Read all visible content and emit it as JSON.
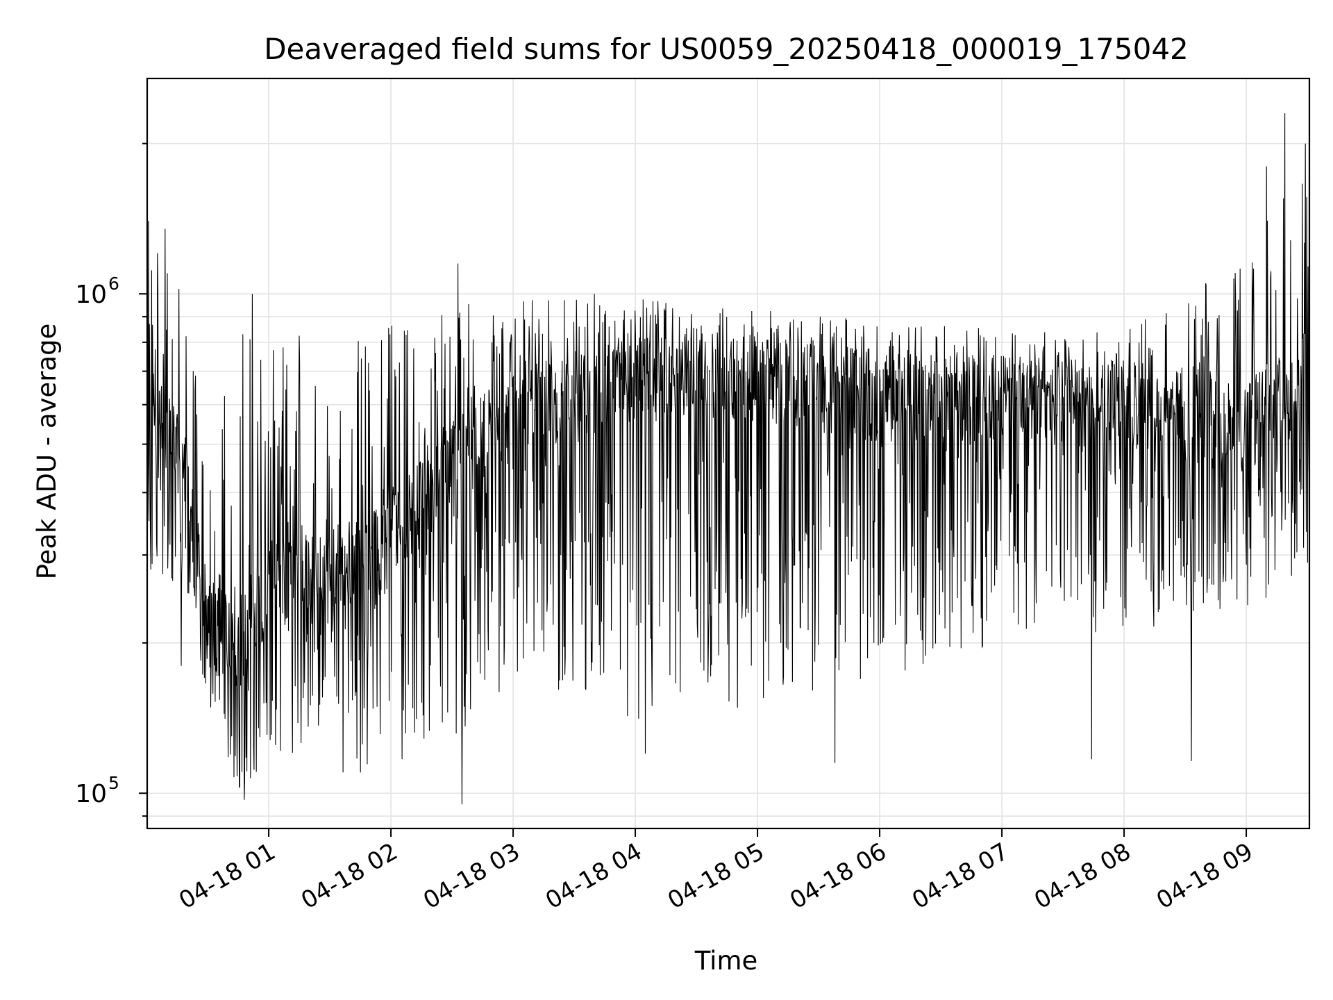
{
  "chart_data": {
    "type": "line",
    "title": "Deaveraged field sums for US0059_20250418_000019_175042",
    "xlabel": "Time",
    "ylabel": "Peak ADU - average",
    "yscale": "log",
    "ylim": [
      85000,
      2700000
    ],
    "xlim": [
      "2025-04-18 00:00:19",
      "2025-04-18 09:31:00"
    ],
    "grid": true,
    "x_ticks": [
      {
        "label": "04-18 01",
        "time": "2025-04-18 01:00"
      },
      {
        "label": "04-18 02",
        "time": "2025-04-18 02:00"
      },
      {
        "label": "04-18 03",
        "time": "2025-04-18 03:00"
      },
      {
        "label": "04-18 04",
        "time": "2025-04-18 04:00"
      },
      {
        "label": "04-18 05",
        "time": "2025-04-18 05:00"
      },
      {
        "label": "04-18 06",
        "time": "2025-04-18 06:00"
      },
      {
        "label": "04-18 07",
        "time": "2025-04-18 07:00"
      },
      {
        "label": "04-18 08",
        "time": "2025-04-18 08:00"
      },
      {
        "label": "04-18 09",
        "time": "2025-04-18 09:00"
      }
    ],
    "y_ticks": [
      {
        "base": "10",
        "exp": "5",
        "value": 100000
      },
      {
        "base": "10",
        "exp": "6",
        "value": 1000000
      }
    ],
    "series": [
      {
        "color": "#000000",
        "profile": [
          {
            "time": "2025-04-18 00:00",
            "median": 600000,
            "low": 280000,
            "high": 1400000
          },
          {
            "time": "2025-04-18 00:20",
            "median": 450000,
            "low": 250000,
            "high": 1000000
          },
          {
            "time": "2025-04-18 00:30",
            "median": 220000,
            "low": 150000,
            "high": 480000
          },
          {
            "time": "2025-04-18 00:45",
            "median": 200000,
            "low": 100000,
            "high": 900000
          },
          {
            "time": "2025-04-18 01:00",
            "median": 260000,
            "low": 110000,
            "high": 800000
          },
          {
            "time": "2025-04-18 01:30",
            "median": 280000,
            "low": 110000,
            "high": 850000
          },
          {
            "time": "2025-04-18 02:00",
            "median": 320000,
            "low": 110000,
            "high": 880000
          },
          {
            "time": "2025-04-18 02:30",
            "median": 450000,
            "low": 120000,
            "high": 950000
          },
          {
            "time": "2025-04-18 03:00",
            "median": 600000,
            "low": 170000,
            "high": 970000
          },
          {
            "time": "2025-04-18 04:00",
            "median": 680000,
            "low": 140000,
            "high": 980000
          },
          {
            "time": "2025-04-18 05:00",
            "median": 680000,
            "low": 150000,
            "high": 930000
          },
          {
            "time": "2025-04-18 06:00",
            "median": 620000,
            "low": 170000,
            "high": 880000
          },
          {
            "time": "2025-04-18 07:00",
            "median": 610000,
            "low": 200000,
            "high": 860000
          },
          {
            "time": "2025-04-18 08:00",
            "median": 600000,
            "low": 210000,
            "high": 850000
          },
          {
            "time": "2025-04-18 09:00",
            "median": 540000,
            "low": 230000,
            "high": 1200000
          },
          {
            "time": "2025-04-18 09:30",
            "median": 700000,
            "low": 280000,
            "high": 2200000
          }
        ],
        "extremes": [
          {
            "time": "2025-04-18 00:01",
            "value": 1400000
          },
          {
            "time": "2025-04-18 00:09",
            "value": 1350000
          },
          {
            "time": "2025-04-18 00:17",
            "value": 180000
          },
          {
            "time": "2025-04-18 00:48",
            "value": 97000
          },
          {
            "time": "2025-04-18 00:52",
            "value": 1000000
          },
          {
            "time": "2025-04-18 02:33",
            "value": 1150000
          },
          {
            "time": "2025-04-18 02:35",
            "value": 95000
          },
          {
            "time": "2025-04-18 03:40",
            "value": 1000000
          },
          {
            "time": "2025-04-18 04:05",
            "value": 120000
          },
          {
            "time": "2025-04-18 05:38",
            "value": 115000
          },
          {
            "time": "2025-04-18 07:44",
            "value": 117000
          },
          {
            "time": "2025-04-18 08:33",
            "value": 116000
          },
          {
            "time": "2025-04-18 09:10",
            "value": 1800000
          },
          {
            "time": "2025-04-18 09:19",
            "value": 2300000
          },
          {
            "time": "2025-04-18 09:29",
            "value": 2000000
          }
        ]
      }
    ]
  }
}
